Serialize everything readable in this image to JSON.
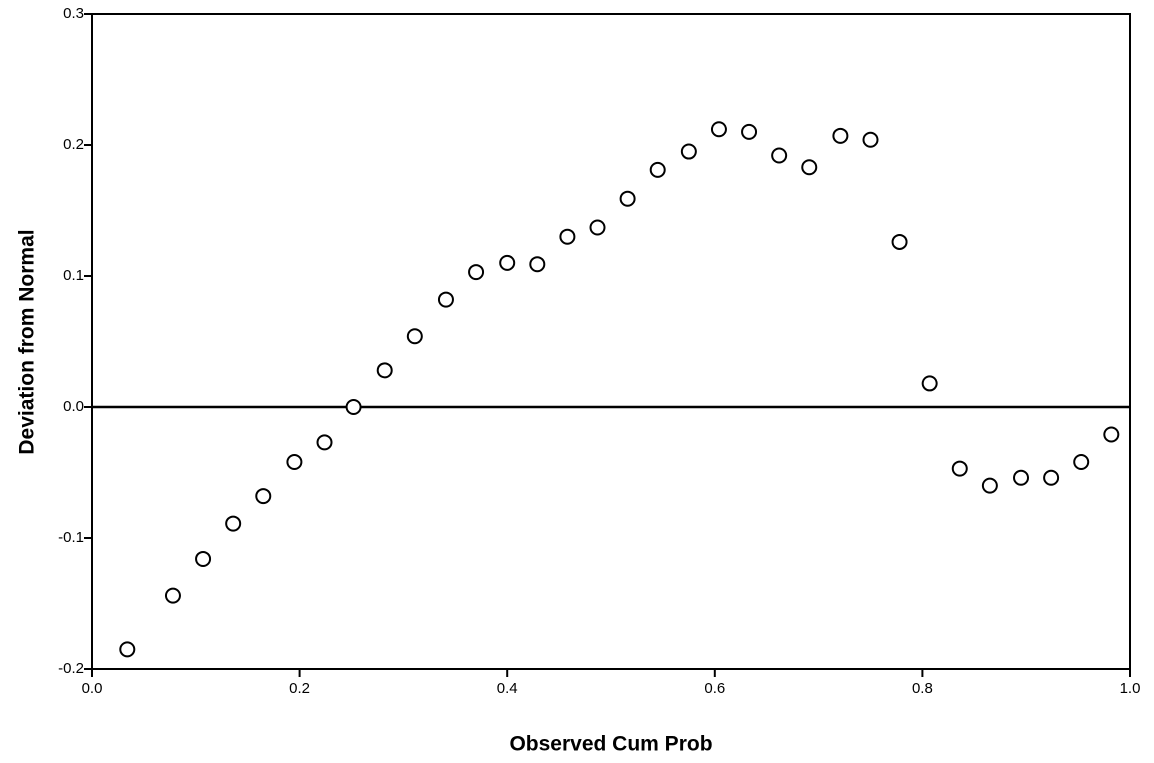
{
  "chart_data": {
    "type": "scatter",
    "xlabel": "Observed Cum Prob",
    "ylabel": "Deviation from Normal",
    "x": [
      0.034,
      0.078,
      0.107,
      0.136,
      0.165,
      0.195,
      0.224,
      0.252,
      0.282,
      0.311,
      0.341,
      0.37,
      0.4,
      0.429,
      0.458,
      0.487,
      0.516,
      0.545,
      0.575,
      0.604,
      0.633,
      0.662,
      0.691,
      0.721,
      0.75,
      0.778,
      0.807,
      0.836,
      0.865,
      0.895,
      0.924,
      0.953,
      0.982
    ],
    "values": [
      -0.185,
      -0.144,
      -0.116,
      -0.089,
      -0.068,
      -0.042,
      -0.027,
      0.0,
      0.028,
      0.054,
      0.082,
      0.103,
      0.11,
      0.109,
      0.13,
      0.137,
      0.159,
      0.181,
      0.195,
      0.212,
      0.21,
      0.192,
      0.183,
      0.207,
      0.204,
      0.126,
      0.018,
      -0.047,
      -0.06,
      -0.054,
      -0.054,
      -0.042,
      -0.021
    ],
    "color": "#000000",
    "xlim": [
      0,
      1
    ],
    "xticks": [
      {
        "value": 0,
        "label": "0.0"
      },
      0.2,
      0.4,
      0.6,
      0.8,
      {
        "value": 1,
        "label": "1.0"
      }
    ],
    "ylim": [
      -0.2,
      0.3
    ],
    "yticks": [
      -0.2,
      -0.1,
      {
        "value": 0,
        "label": "0.0"
      },
      0.1,
      0.2,
      0.3
    ]
  }
}
